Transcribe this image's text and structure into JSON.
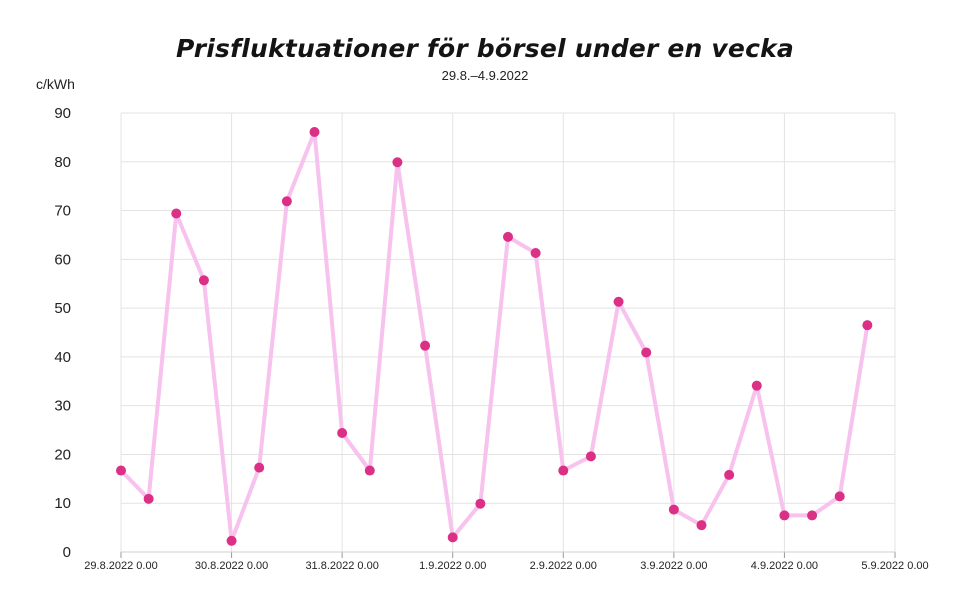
{
  "chart_data": {
    "type": "line",
    "title": "Prisfluktuationer för börsel under en vecka",
    "subtitle": "29.8.–4.9.2022",
    "ylabel": "c/kWh",
    "xlabel": "",
    "ylim": [
      0,
      90
    ],
    "yticks": [
      0,
      10,
      20,
      30,
      40,
      50,
      60,
      70,
      80,
      90
    ],
    "xlim": [
      "29.8.2022 0.00",
      "5.9.2022 0.00"
    ],
    "xticks": [
      "29.8.2022 0.00",
      "30.8.2022 0.00",
      "31.8.2022 0.00",
      "1.9.2022 0.00",
      "2.9.2022 0.00",
      "3.9.2022 0.00",
      "4.9.2022 0.00",
      "5.9.2022 0.00"
    ],
    "grid": true,
    "colors": {
      "line": "#f7c2ee",
      "marker": "#dc2f86"
    },
    "series": [
      {
        "x": [
          "29.8.2022 0.00",
          "29.8.2022 6.00",
          "29.8.2022 12.00",
          "29.8.2022 18.00",
          "30.8.2022 0.00",
          "30.8.2022 6.00",
          "30.8.2022 12.00",
          "30.8.2022 18.00",
          "31.8.2022 0.00",
          "31.8.2022 6.00",
          "31.8.2022 12.00",
          "31.8.2022 18.00",
          "1.9.2022 0.00",
          "1.9.2022 6.00",
          "1.9.2022 12.00",
          "1.9.2022 18.00",
          "2.9.2022 0.00",
          "2.9.2022 6.00",
          "2.9.2022 12.00",
          "2.9.2022 18.00",
          "3.9.2022 0.00",
          "3.9.2022 6.00",
          "3.9.2022 12.00",
          "3.9.2022 18.00",
          "4.9.2022 0.00",
          "4.9.2022 6.00",
          "4.9.2022 12.00",
          "4.9.2022 18.00"
        ],
        "values": [
          16.7,
          10.9,
          69.4,
          55.7,
          2.3,
          17.3,
          71.9,
          86.1,
          24.4,
          16.7,
          79.9,
          42.3,
          3.0,
          9.9,
          64.6,
          61.3,
          16.7,
          19.6,
          51.3,
          40.9,
          8.7,
          5.5,
          15.8,
          34.1,
          7.5,
          7.5,
          11.4,
          46.5
        ]
      }
    ]
  }
}
